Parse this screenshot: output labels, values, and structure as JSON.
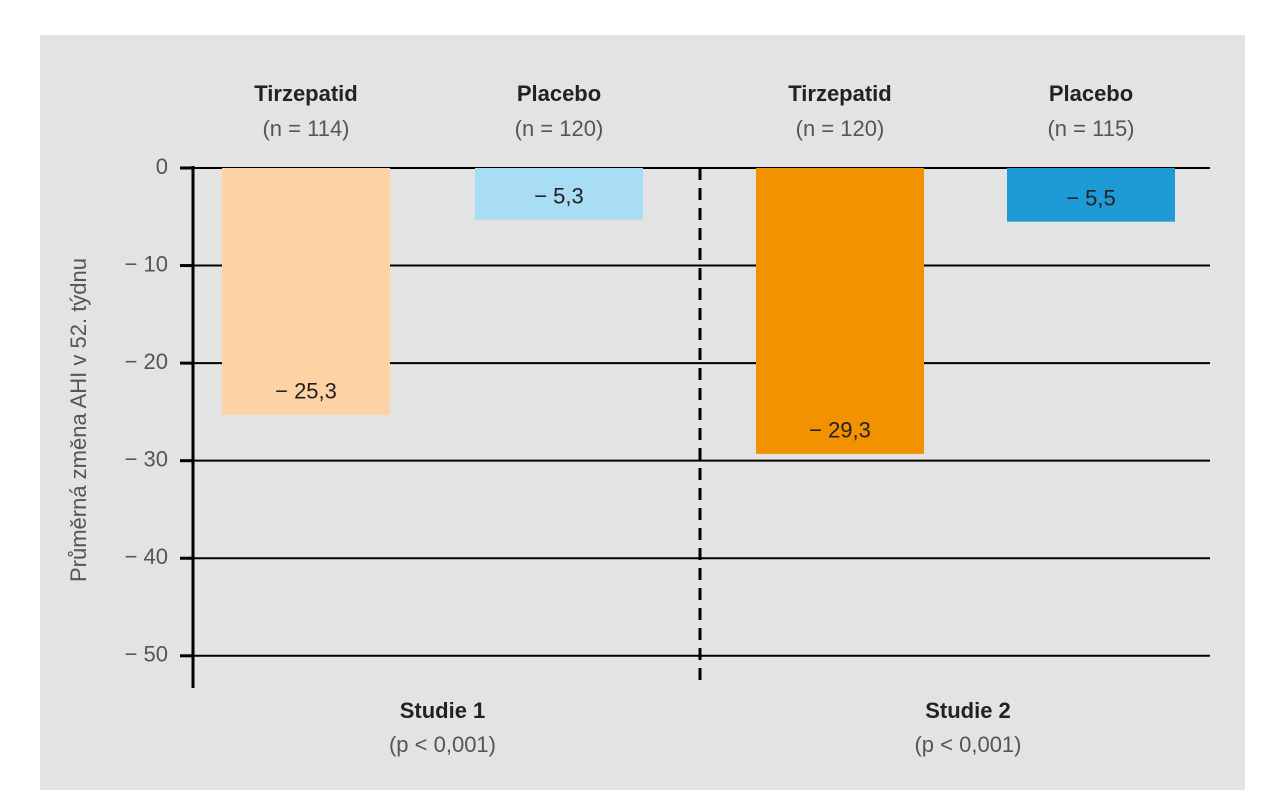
{
  "chart_data": {
    "type": "bar",
    "y_label": "Průměrná změna AHI v 52. týdnu",
    "categories": [
      "Tirzepatid",
      "Placebo",
      "Tirzepatid",
      "Placebo"
    ],
    "category_notes": [
      "(n = 114)",
      "(n = 120)",
      "(n = 120)",
      "(n = 115)"
    ],
    "values": [
      -25.3,
      -5.3,
      -29.3,
      -5.5
    ],
    "value_labels": [
      "− 25,3",
      "− 5,3",
      "− 29,3",
      "− 5,5"
    ],
    "colors": [
      "#fdd3a5",
      "#a9dcf5",
      "#f39200",
      "#1e9ad6"
    ],
    "groups": [
      {
        "label": "Studie 1",
        "note": "(p < 0,001)"
      },
      {
        "label": "Studie 2",
        "note": "(p < 0,001)"
      }
    ],
    "ylim": [
      -53.3,
      0
    ],
    "yticks": [
      0,
      {
        "value": -10,
        "label": "− 10"
      },
      {
        "value": -20,
        "label": "− 20"
      },
      {
        "value": -30,
        "label": "− 30"
      },
      {
        "value": -40,
        "label": "− 40"
      },
      {
        "value": -50,
        "label": "− 50"
      }
    ],
    "grid": true
  }
}
